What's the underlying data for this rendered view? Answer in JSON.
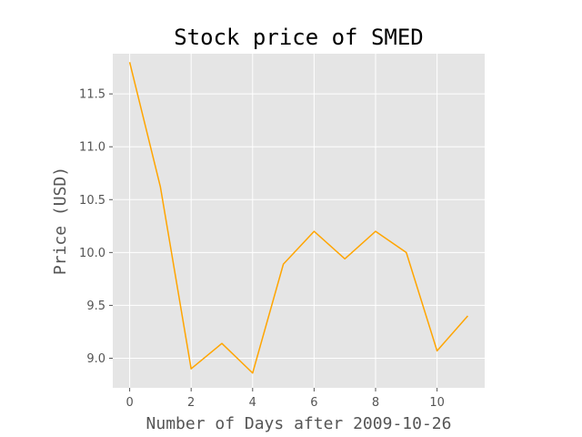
{
  "chart_data": {
    "type": "line",
    "title": "Stock price of SMED",
    "xlabel": "Number of Days after 2009-10-26",
    "ylabel": "Price (USD)",
    "xlim": [
      -0.55,
      11.55
    ],
    "ylim": [
      8.72,
      11.88
    ],
    "xticks": [
      0,
      2,
      4,
      6,
      8,
      10
    ],
    "xtick_labels": [
      "0",
      "2",
      "4",
      "6",
      "8",
      "10"
    ],
    "yticks": [
      9.0,
      9.5,
      10.0,
      10.5,
      11.0,
      11.5
    ],
    "ytick_labels": [
      "9.0",
      "9.5",
      "10.0",
      "10.5",
      "11.0",
      "11.5"
    ],
    "grid": true,
    "line_color": "#ffa500",
    "background_color": "#e5e5e5",
    "grid_color": "#ffffff",
    "series": [
      {
        "x": [
          0,
          1,
          2,
          3,
          4,
          5,
          6,
          7,
          8,
          9,
          10,
          11
        ],
        "values": [
          11.8,
          10.62,
          8.9,
          9.14,
          8.86,
          9.89,
          10.2,
          9.94,
          10.2,
          10.0,
          9.07,
          9.4
        ]
      }
    ]
  }
}
